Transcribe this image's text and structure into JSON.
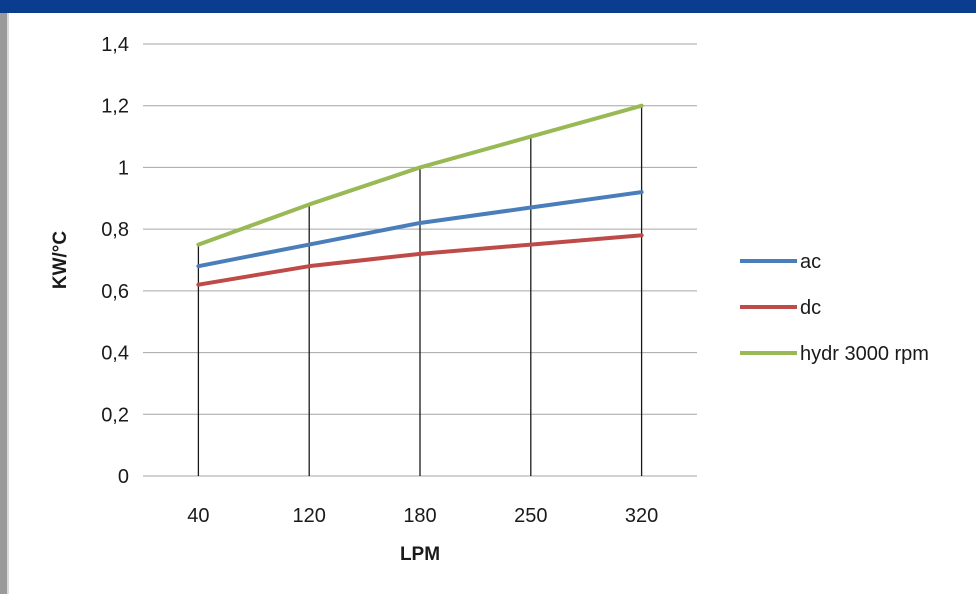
{
  "chart_data": {
    "type": "line",
    "categories": [
      "40",
      "120",
      "180",
      "250",
      "320"
    ],
    "series": [
      {
        "name": "ac",
        "values": [
          0.68,
          0.75,
          0.82,
          0.87,
          0.92
        ],
        "color": "#4a7ebb"
      },
      {
        "name": "dc",
        "values": [
          0.62,
          0.68,
          0.72,
          0.75,
          0.78
        ],
        "color": "#be4b48"
      },
      {
        "name": "hydr 3000 rpm",
        "values": [
          0.75,
          0.88,
          1.0,
          1.1,
          1.2
        ],
        "color": "#98b954"
      }
    ],
    "xlabel": "LPM",
    "ylabel": "KW/°C",
    "ylim": [
      0,
      1.4
    ],
    "yticks": [
      "0",
      "0,2",
      "0,4",
      "0,6",
      "0,8",
      "1",
      "1,2",
      "1,4"
    ],
    "grid": true,
    "drop_lines": true,
    "legend": "right"
  },
  "colors": {
    "header": "#0a3d8f",
    "grid": "#a6a6a6",
    "drop_line": "#1a1a1a"
  }
}
